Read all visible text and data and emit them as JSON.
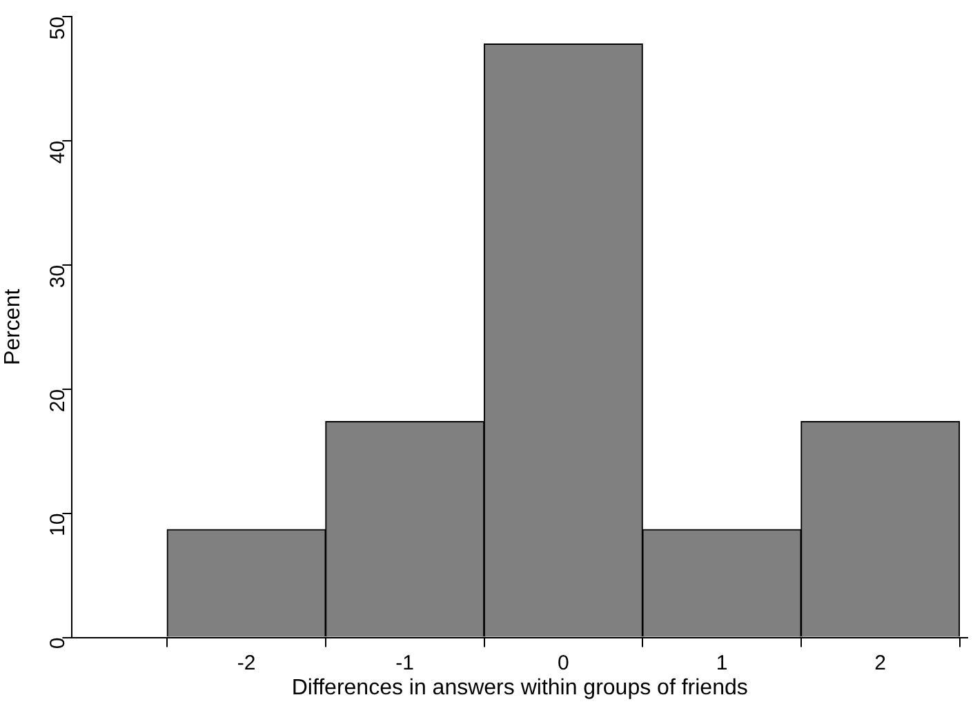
{
  "chart_data": {
    "type": "histogram",
    "xlabel": "Differences in answers within groups of friends",
    "ylabel": "Percent",
    "bins": [
      -2.5,
      -1.5,
      -0.5,
      0.5,
      1.5,
      2.5
    ],
    "values": [
      8.7,
      17.4,
      47.8,
      8.7,
      17.4
    ],
    "color": "#808080",
    "xlim": [
      -3.1,
      2.55
    ],
    "xticks": [
      -2,
      -1,
      0,
      1,
      2
    ],
    "ylim": [
      0,
      50
    ],
    "yticks": [
      0,
      10,
      20,
      30,
      40,
      50
    ],
    "grid": false,
    "legend": false
  }
}
